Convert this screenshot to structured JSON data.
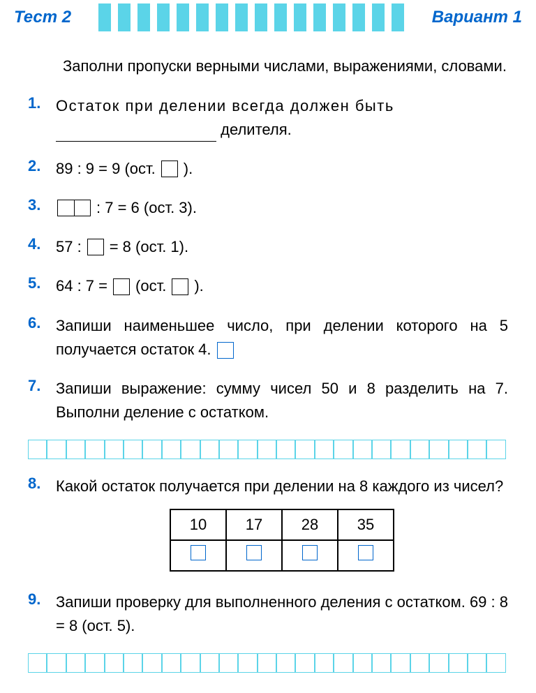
{
  "colors": {
    "accent_blue": "#0066cc",
    "stripe_cyan": "#5bd4e8",
    "text": "#000000",
    "background": "#ffffff"
  },
  "header": {
    "left": "Тест 2",
    "right": "Вариант 1",
    "stripe_count": 16
  },
  "intro": "Заполни пропуски верными числами, выражениями, словами.",
  "tasks": {
    "t1": {
      "num": "1.",
      "before": "Остаток   при   делении   всегда   должен   быть",
      "after": "делителя."
    },
    "t2": {
      "num": "2.",
      "a": "89 : 9 = 9  (ост.",
      "b": ")."
    },
    "t3": {
      "num": "3.",
      "a": ": 7 = 6  (ост. 3)."
    },
    "t4": {
      "num": "4.",
      "a": "57 :",
      "b": "= 8  (ост. 1)."
    },
    "t5": {
      "num": "5.",
      "a": "64 : 7 =",
      "b": "(ост.",
      "c": ")."
    },
    "t6": {
      "num": "6.",
      "text": "Запиши наименьшее число, при делении которого на 5 получается остаток 4."
    },
    "t7": {
      "num": "7.",
      "text": "Запиши выражение: сумму чисел 50 и 8 разделить на 7. Выполни деление с остатком."
    },
    "t8": {
      "num": "8.",
      "text": "Какой остаток получается при делении на 8 каждого из чисел?",
      "table": {
        "headers": [
          "10",
          "17",
          "28",
          "35"
        ]
      }
    },
    "t9": {
      "num": "9.",
      "text": "Запиши проверку для выполненного деления с остатком.  69 : 8 = 8  (ост. 5)."
    }
  },
  "grid": {
    "cells": 25
  }
}
